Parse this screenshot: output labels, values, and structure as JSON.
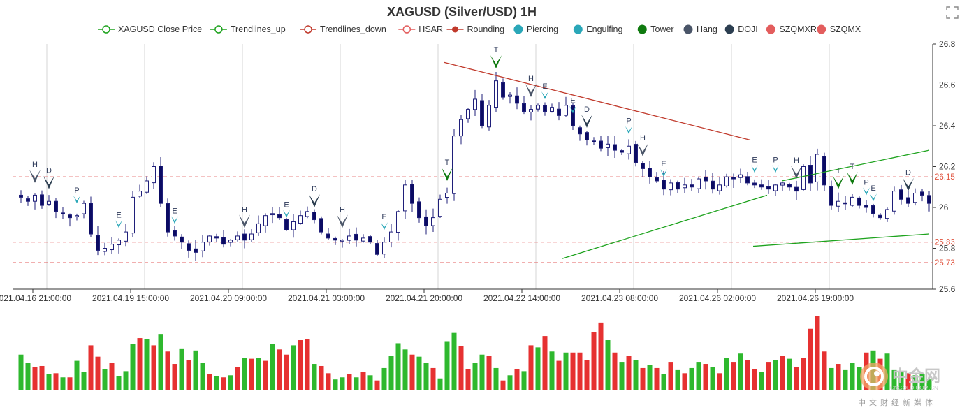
{
  "colors": {
    "up_candle": "#ffffff",
    "up_border": "#1f1f7a",
    "down_candle": "#0b0b63",
    "trend_up": "#1ea31e",
    "trend_down": "#c0392b",
    "ref_line": "#e35d5d",
    "vol_up": "#2eb82e",
    "vol_down": "#e63131",
    "grid": "#d5d5d5",
    "marker_tower": "#0f7a0f",
    "marker_hang": "#4a5568",
    "marker_doji": "#2c3e50",
    "marker_pe": "#2aa7b8",
    "text": "#333333"
  },
  "toolbar": {
    "expand_icon": "fullscreen-expand-icon"
  },
  "watermark": {
    "cn": "中金网",
    "url": "CNGOLD.COM.CN",
    "sub": "中文财经新媒体"
  },
  "chart_data": {
    "type": "candlestick",
    "title": "XAGUSD (Silver/USD) 1H",
    "legend": [
      {
        "label": "XAGUSD Close Price",
        "icon": "line-circle",
        "color": "#1ea31e"
      },
      {
        "label": "Trendlines_up",
        "icon": "line-circle",
        "color": "#1ea31e"
      },
      {
        "label": "Trendlines_down",
        "icon": "line-circle",
        "color": "#c0392b"
      },
      {
        "label": "HSAR",
        "icon": "line-circle",
        "color": "#e35d5d"
      },
      {
        "label": "Rounding",
        "icon": "line-dot",
        "color": "#c0392b"
      },
      {
        "label": "Piercing",
        "icon": "dot",
        "color": "#2aa7b8"
      },
      {
        "label": "Engulfing",
        "icon": "dot",
        "color": "#2aa7b8"
      },
      {
        "label": "Tower",
        "icon": "dot",
        "color": "#0f7a0f"
      },
      {
        "label": "Hang",
        "icon": "dot",
        "color": "#4a5568"
      },
      {
        "label": "DOJI",
        "icon": "dot",
        "color": "#2c3e50"
      },
      {
        "label": "SZQMXR",
        "icon": "dot",
        "color": "#e35d5d"
      },
      {
        "label": "SZQMX",
        "icon": "dot",
        "color": "#e35d5d"
      }
    ],
    "ylim": [
      25.6,
      26.8
    ],
    "yticks": [
      25.6,
      25.8,
      26,
      26.2,
      26.4,
      26.6,
      26.8
    ],
    "xlim": [
      0,
      130
    ],
    "xticks": [
      {
        "i": 0,
        "label": "2021.04.16 21:00:00"
      },
      {
        "i": 14,
        "label": "2021.04.19 15:00:00"
      },
      {
        "i": 28,
        "label": "2021.04.20 09:00:00"
      },
      {
        "i": 42,
        "label": "2021.04.21 03:00:00"
      },
      {
        "i": 56,
        "label": "2021.04.21 20:00:00"
      },
      {
        "i": 70,
        "label": "2021.04.22 14:00:00"
      },
      {
        "i": 84,
        "label": "2021.04.23 08:00:00"
      },
      {
        "i": 98,
        "label": "2021.04.26 02:00:00"
      },
      {
        "i": 112,
        "label": "2021.04.26 19:00:00"
      }
    ],
    "vertical_grid_i": [
      2,
      16,
      30,
      44,
      58,
      72,
      86,
      100,
      114
    ],
    "ref_levels": [
      26.15,
      25.83,
      25.73
    ],
    "closes": [
      26.05,
      26.03,
      26.06,
      26.01,
      26.03,
      25.98,
      25.97,
      25.95,
      25.96,
      26.02,
      25.87,
      25.79,
      25.8,
      25.82,
      25.84,
      25.88,
      26.05,
      26.08,
      26.13,
      26.2,
      26.02,
      25.88,
      25.86,
      25.83,
      25.79,
      25.78,
      25.83,
      25.86,
      25.85,
      25.82,
      25.84,
      25.86,
      25.84,
      25.87,
      25.92,
      25.96,
      25.97,
      25.95,
      25.89,
      25.93,
      25.96,
      25.98,
      25.94,
      25.88,
      25.85,
      25.84,
      25.84,
      25.86,
      25.84,
      25.85,
      25.83,
      25.77,
      25.83,
      25.88,
      25.98,
      26.11,
      26.02,
      25.95,
      25.91,
      25.95,
      26.04,
      26.07,
      26.35,
      26.43,
      26.48,
      26.53,
      26.4,
      26.5,
      26.62,
      26.54,
      26.55,
      26.51,
      26.47,
      26.48,
      26.5,
      26.47,
      26.49,
      26.45,
      26.5,
      26.4,
      26.36,
      26.33,
      26.32,
      26.29,
      26.31,
      26.28,
      26.27,
      26.3,
      26.22,
      26.19,
      26.15,
      26.13,
      26.09,
      26.12,
      26.09,
      26.11,
      26.1,
      26.14,
      26.13,
      26.09,
      26.11,
      26.15,
      26.14,
      26.16,
      26.12,
      26.11,
      26.1,
      26.09,
      26.11,
      26.12,
      26.1,
      26.08,
      26.2,
      26.12,
      26.26,
      26.11,
      26.01,
      26.03,
      26.02,
      26.05,
      26.01,
      26.0,
      25.97,
      25.95,
      25.99,
      26.08,
      26.04,
      26.02,
      26.07,
      26.06,
      26.02
    ],
    "trendlines_up": [
      [
        77.5,
        25.75,
        106.8,
        26.06
      ],
      [
        104.8,
        25.81,
        130,
        25.87
      ],
      [
        108.9,
        26.13,
        130,
        26.28
      ]
    ],
    "trendlines_down": [
      [
        60.6,
        26.71,
        104.4,
        26.33
      ]
    ],
    "markers": [
      {
        "i": 2,
        "type": "Hang",
        "label": "H"
      },
      {
        "i": 4,
        "type": "DOJI",
        "label": "D"
      },
      {
        "i": 8,
        "type": "Piercing",
        "label": "P"
      },
      {
        "i": 14,
        "type": "Engulfing",
        "label": "E"
      },
      {
        "i": 22,
        "type": "Engulfing",
        "label": "E"
      },
      {
        "i": 32,
        "type": "Hang",
        "label": "H"
      },
      {
        "i": 38,
        "type": "Engulfing",
        "label": "E"
      },
      {
        "i": 42,
        "type": "DOJI",
        "label": "D"
      },
      {
        "i": 46,
        "type": "Hang",
        "label": "H"
      },
      {
        "i": 52,
        "type": "Engulfing",
        "label": "E"
      },
      {
        "i": 61,
        "type": "Tower",
        "label": "T"
      },
      {
        "i": 68,
        "type": "Tower",
        "label": "T"
      },
      {
        "i": 73,
        "type": "Hang",
        "label": "H"
      },
      {
        "i": 75,
        "type": "Engulfing",
        "label": "E"
      },
      {
        "i": 79,
        "type": "Engulfing",
        "label": "E"
      },
      {
        "i": 81,
        "type": "DOJI",
        "label": "D"
      },
      {
        "i": 87,
        "type": "Piercing",
        "label": "P"
      },
      {
        "i": 89,
        "type": "Hang",
        "label": "H"
      },
      {
        "i": 92,
        "type": "Engulfing",
        "label": "E"
      },
      {
        "i": 105,
        "type": "Engulfing",
        "label": "E"
      },
      {
        "i": 108,
        "type": "Piercing",
        "label": "P"
      },
      {
        "i": 111,
        "type": "Hang",
        "label": "H"
      },
      {
        "i": 117,
        "type": "Tower",
        "label": "T"
      },
      {
        "i": 119,
        "type": "Tower",
        "label": "T"
      },
      {
        "i": 121,
        "type": "Piercing",
        "label": "P"
      },
      {
        "i": 122,
        "type": "Engulfing",
        "label": "E"
      },
      {
        "i": 127,
        "type": "DOJI",
        "label": "D"
      }
    ],
    "volumes": [
      34,
      26,
      22,
      23,
      15,
      16,
      12,
      12,
      28,
      17,
      43,
      32,
      20,
      26,
      13,
      18,
      44,
      50,
      49,
      43,
      54,
      37,
      25,
      40,
      29,
      38,
      26,
      15,
      13,
      12,
      14,
      22,
      31,
      30,
      31,
      28,
      44,
      39,
      34,
      43,
      48,
      49,
      25,
      23,
      16,
      10,
      12,
      15,
      12,
      17,
      14,
      9,
      21,
      33,
      45,
      39,
      34,
      32,
      26,
      21,
      11,
      47,
      55,
      42,
      20,
      26,
      34,
      33,
      21,
      9,
      14,
      20,
      18,
      43,
      41,
      52,
      37,
      28,
      36,
      36,
      36,
      29,
      56,
      65,
      48,
      36,
      27,
      33,
      29,
      21,
      24,
      21,
      15,
      27,
      19,
      16,
      21,
      27,
      25,
      22,
      16,
      31,
      27,
      35,
      29,
      20,
      17,
      27,
      29,
      33,
      30,
      22,
      31,
      59,
      71,
      37,
      21,
      25,
      19,
      26,
      22,
      36,
      38,
      30,
      35,
      19,
      18,
      16,
      14,
      15,
      10
    ],
    "volume_up": [
      true,
      true,
      false,
      false,
      true,
      false,
      true,
      false,
      true,
      true,
      false,
      false,
      true,
      false,
      true,
      true,
      true,
      false,
      true,
      false,
      true,
      false,
      false,
      true,
      false,
      true,
      true,
      false,
      true,
      false,
      true,
      false,
      true,
      false,
      true,
      false,
      true,
      false,
      false,
      true,
      false,
      false,
      true,
      false,
      false,
      true,
      true,
      false,
      true,
      false,
      true,
      false,
      true,
      true,
      true,
      true,
      false,
      true,
      true,
      false,
      true,
      true,
      true,
      false,
      false,
      true,
      true,
      false,
      true,
      false,
      true,
      false,
      true,
      false,
      true,
      false,
      true,
      false,
      true,
      false,
      false,
      false,
      false,
      false,
      true,
      false,
      true,
      false,
      true,
      false,
      true,
      false,
      true,
      false,
      true,
      false,
      true,
      true,
      false,
      true,
      false,
      true,
      false,
      true,
      false,
      false,
      true,
      false,
      true,
      false,
      true,
      false,
      false,
      false,
      false,
      false,
      true,
      false,
      true,
      true,
      true,
      false,
      true,
      false,
      true,
      true,
      true,
      false,
      true,
      true,
      true
    ]
  }
}
